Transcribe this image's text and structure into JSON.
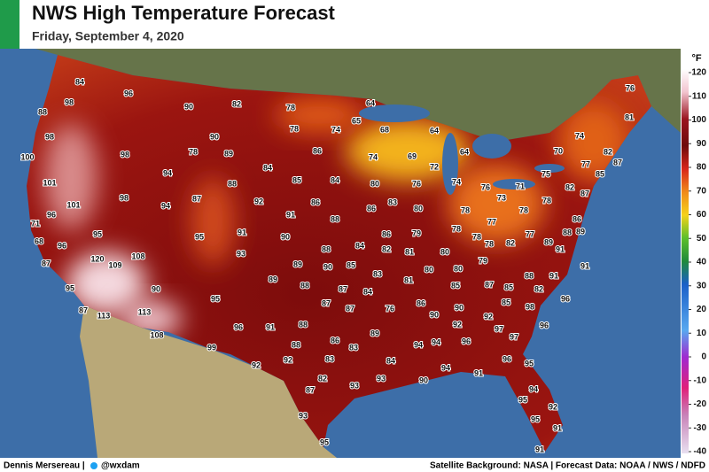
{
  "header": {
    "title": "NWS High Temperature Forecast",
    "subtitle": "Friday, September 4, 2020"
  },
  "map": {
    "labels": [
      84,
      96,
      98,
      88,
      90,
      82,
      78,
      64,
      76,
      81,
      65,
      78,
      74,
      68,
      64,
      90,
      98,
      78,
      89,
      86,
      74,
      70,
      82,
      100,
      98,
      84,
      74,
      69,
      64,
      72,
      77,
      87,
      94,
      85,
      84,
      80,
      76,
      74,
      76,
      71,
      75,
      85,
      101,
      87,
      88,
      92,
      86,
      86,
      83,
      80,
      73,
      82,
      78,
      87,
      96,
      101,
      98,
      94,
      91,
      88,
      78,
      77,
      78,
      86,
      71,
      95,
      95,
      91,
      90,
      88,
      84,
      86,
      79,
      78,
      78,
      82,
      77,
      88,
      89,
      89,
      68,
      96,
      120,
      109,
      108,
      93,
      89,
      90,
      85,
      82,
      81,
      80,
      78,
      79,
      91,
      87,
      91,
      80,
      80,
      95,
      90,
      89,
      88,
      83,
      81,
      85,
      87,
      85,
      88,
      82,
      91,
      87,
      84,
      95,
      87,
      87,
      113,
      113,
      87,
      86,
      76,
      85,
      98,
      96,
      90,
      90,
      92,
      96,
      91,
      108,
      88,
      92,
      97,
      97,
      96,
      99,
      86,
      89,
      88,
      83,
      94,
      94,
      96,
      92,
      92,
      83,
      84,
      94,
      96,
      95,
      91,
      82,
      93,
      93,
      90,
      87,
      94,
      95,
      92,
      93,
      95,
      91,
      95,
      91
    ]
  },
  "legend": {
    "unit": "°F",
    "ticks": [
      120,
      110,
      100,
      90,
      80,
      70,
      60,
      50,
      40,
      30,
      20,
      10,
      0,
      -10,
      -20,
      -30,
      -40
    ]
  },
  "footer": {
    "author": "Dennis Mersereau |",
    "handle": "@wxdam",
    "credits": "Satellite Background: NASA | Forecast Data: NOAA / NWS / NDFD"
  }
}
